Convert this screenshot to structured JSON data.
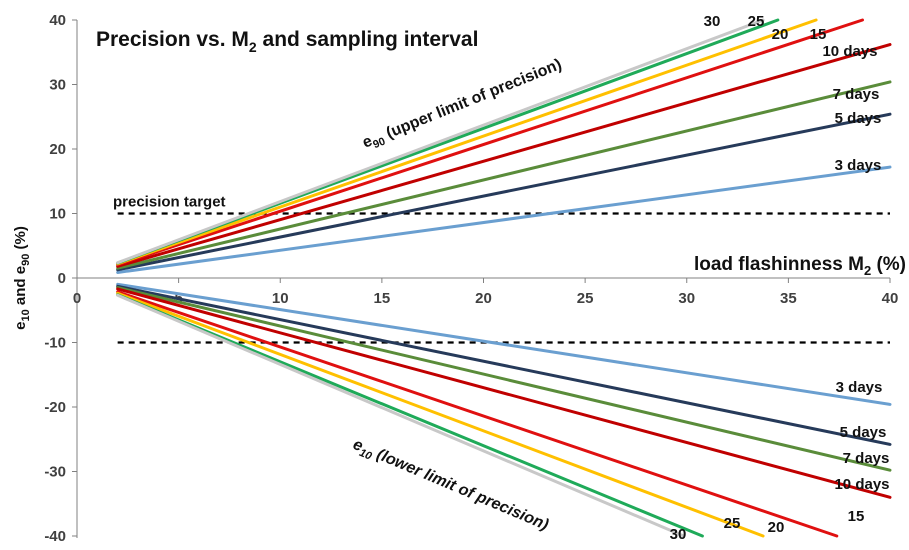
{
  "chart_data": {
    "type": "line",
    "title": "Precision vs. M",
    "title_sub": "2",
    "title_rest": " and sampling interval",
    "xlabel": "load flashinness M",
    "xlabel_sub": "2",
    "xlabel_rest": " (%)",
    "ylabel_parts": [
      "e",
      "10",
      " and e",
      "90",
      " (%)"
    ],
    "xlim": [
      0,
      40
    ],
    "ylim": [
      -40,
      40
    ],
    "xticks": [
      "0",
      "5",
      "10",
      "15",
      "20",
      "25",
      "30",
      "35",
      "40"
    ],
    "yticks": [
      "40",
      "30",
      "20",
      "10",
      "0",
      "-10",
      "-20",
      "-30",
      "-40"
    ],
    "grid": false,
    "x_start": 2,
    "series": [
      {
        "name": "30",
        "color": "#c8c8c8",
        "upper_slope": 1.185,
        "lower_slope": -1.34
      },
      {
        "name": "25",
        "color": "#1faa59",
        "upper_slope": 1.16,
        "lower_slope": -1.3
      },
      {
        "name": "20",
        "color": "#ffc000",
        "upper_slope": 1.1,
        "lower_slope": -1.185
      },
      {
        "name": "15",
        "color": "#e01010",
        "upper_slope": 1.035,
        "lower_slope": -1.07
      },
      {
        "name": "10 days",
        "color": "#c00000",
        "upper_slope": 0.905,
        "lower_slope": -0.85
      },
      {
        "name": "7 days",
        "color": "#5a8c3a",
        "upper_slope": 0.76,
        "lower_slope": -0.745
      },
      {
        "name": "5 days",
        "color": "#263a5a",
        "upper_slope": 0.635,
        "lower_slope": -0.645
      },
      {
        "name": "3 days",
        "color": "#6a9fd0",
        "upper_slope": 0.43,
        "lower_slope": -0.49
      }
    ],
    "reference_lines": [
      {
        "y": 10,
        "label": "precision target"
      },
      {
        "y": -10,
        "label": ""
      }
    ],
    "annotations": {
      "upper_main": "e",
      "upper_sub": "90",
      "upper_rest": " (upper limit of precision)",
      "lower_main": "e",
      "lower_sub": "10",
      "lower_rest": " (lower limit of precision)"
    }
  }
}
